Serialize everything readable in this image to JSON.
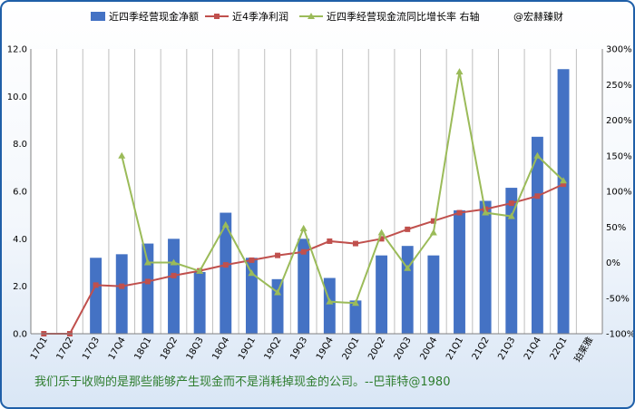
{
  "chart_data": {
    "type": "bar",
    "categories": [
      "17Q1",
      "17Q2",
      "17Q3",
      "17Q4",
      "18Q1",
      "18Q2",
      "18Q3",
      "18Q4",
      "19Q1",
      "19Q2",
      "19Q3",
      "19Q4",
      "20Q1",
      "20Q2",
      "20Q3",
      "20Q4",
      "21Q1",
      "21Q2",
      "21Q3",
      "21Q4",
      "22Q1",
      "珀莱雅"
    ],
    "series": [
      {
        "name": "近四季经营现金净额",
        "kind": "bar",
        "axis": "left",
        "color": "#4472c4",
        "values": [
          null,
          null,
          3.2,
          3.35,
          3.8,
          4.0,
          2.6,
          5.1,
          3.2,
          2.3,
          4.0,
          2.35,
          1.4,
          3.3,
          3.7,
          3.3,
          5.2,
          5.6,
          6.15,
          8.3,
          11.15,
          null
        ]
      },
      {
        "name": "近4季净利润",
        "kind": "line",
        "axis": "left",
        "color": "#c0504d",
        "values": [
          0.0,
          0.0,
          2.05,
          2.0,
          2.2,
          2.45,
          2.65,
          2.9,
          3.1,
          3.3,
          3.45,
          3.9,
          3.8,
          4.0,
          4.4,
          4.75,
          5.1,
          5.25,
          5.5,
          5.8,
          6.3,
          null
        ]
      },
      {
        "name": "近四季经营现金流同比增长率 右轴",
        "kind": "line",
        "axis": "right",
        "color": "#9bbb59",
        "values": [
          null,
          null,
          null,
          150,
          0,
          0,
          -12,
          53,
          -15,
          -42,
          48,
          -55,
          -57,
          42,
          -8,
          42,
          268,
          70,
          65,
          150,
          115,
          null
        ]
      }
    ],
    "legend_extra": "@宏赫臻财",
    "ylim": [
      0,
      12
    ],
    "yticks": [
      "0.0",
      "2.0",
      "4.0",
      "6.0",
      "8.0",
      "10.0",
      "12.0"
    ],
    "y2lim": [
      -100,
      300
    ],
    "y2ticks": [
      "-100%",
      "-50%",
      "0%",
      "50%",
      "100%",
      "150%",
      "200%",
      "250%",
      "300%"
    ],
    "grid": true,
    "legend_position": "top",
    "annotation": "我们乐于收购的是那些能够产生现金而不是消耗掉现金的公司。--巴菲特@1980"
  }
}
